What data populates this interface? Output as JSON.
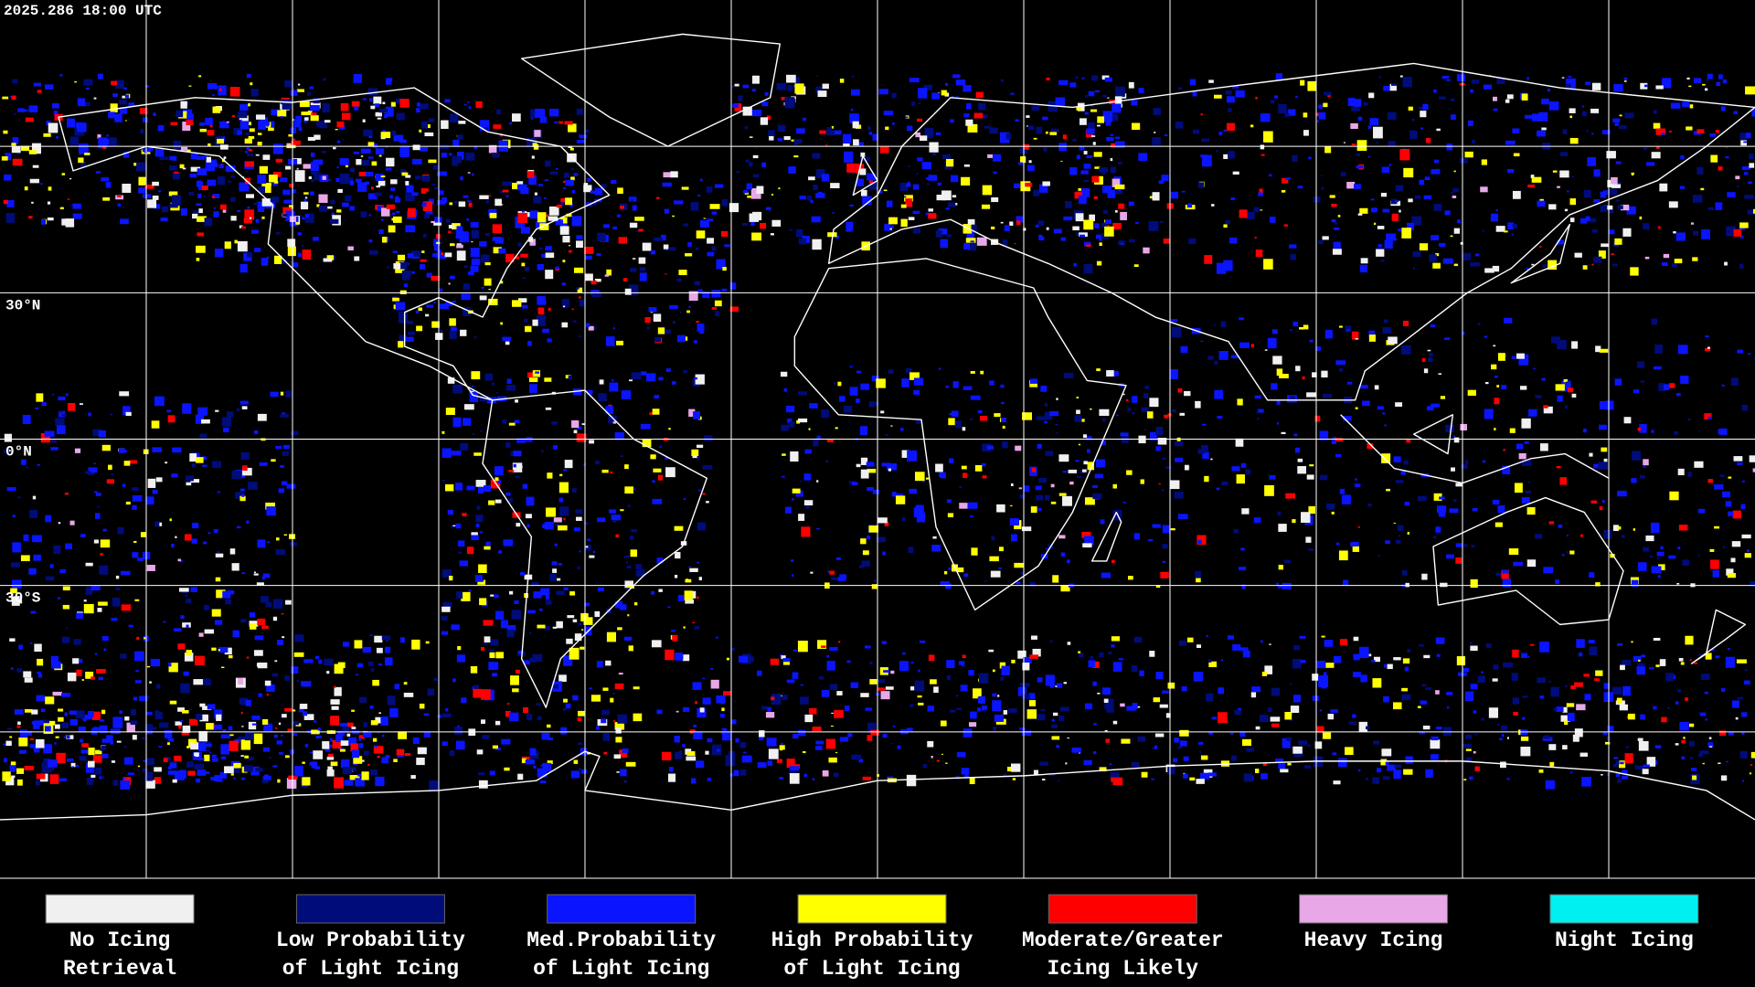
{
  "header": {
    "timestamp": "2025.286 18:00 UTC"
  },
  "map": {
    "latitude_labels": [
      "30°N",
      "0°N",
      "30°S"
    ]
  },
  "legend": {
    "items": [
      {
        "lines": [
          "No Icing",
          "Retrieval"
        ],
        "color": "#f0f0f0"
      },
      {
        "lines": [
          "Low Probability",
          "of Light Icing"
        ],
        "color": "#000c7a"
      },
      {
        "lines": [
          "Med.Probability",
          "of Light Icing"
        ],
        "color": "#0a14ff"
      },
      {
        "lines": [
          "High Probability",
          "of Light Icing"
        ],
        "color": "#ffff00"
      },
      {
        "lines": [
          "Moderate/Greater",
          "Icing Likely"
        ],
        "color": "#ff0000"
      },
      {
        "lines": [
          "Heavy Icing"
        ],
        "color": "#e8a8e8"
      },
      {
        "lines": [
          "Night Icing"
        ],
        "color": "#00f0f0"
      }
    ]
  }
}
